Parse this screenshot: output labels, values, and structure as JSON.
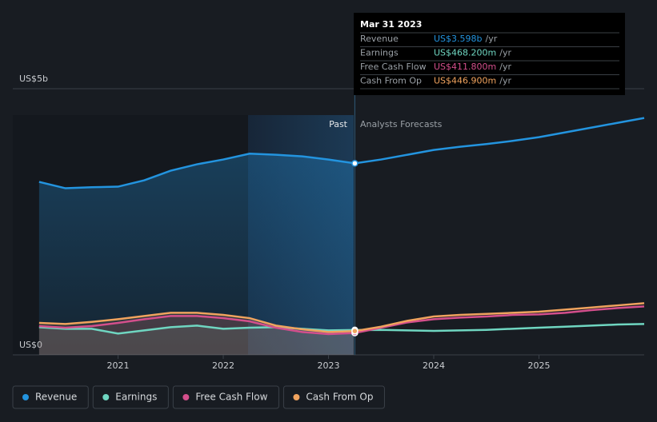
{
  "chart_data": {
    "type": "line",
    "x": [
      2020.25,
      2020.5,
      2020.75,
      2021.0,
      2021.25,
      2021.5,
      2021.75,
      2022.0,
      2022.25,
      2022.5,
      2022.75,
      2023.0,
      2023.25,
      2023.5,
      2023.75,
      2024.0,
      2024.25,
      2024.5,
      2024.75,
      2025.0,
      2025.25,
      2025.5,
      2025.75,
      2026.0
    ],
    "series": [
      {
        "name": "Revenue",
        "color": "#2394df",
        "values": [
          3.25,
          3.13,
          3.15,
          3.16,
          3.28,
          3.46,
          3.58,
          3.67,
          3.78,
          3.76,
          3.73,
          3.67,
          3.598,
          3.67,
          3.76,
          3.85,
          3.91,
          3.96,
          4.02,
          4.09,
          4.18,
          4.27,
          4.36,
          4.45
        ]
      },
      {
        "name": "Earnings",
        "color": "#6fd6c1",
        "values": [
          0.52,
          0.49,
          0.49,
          0.4,
          0.46,
          0.52,
          0.55,
          0.49,
          0.51,
          0.52,
          0.49,
          0.46,
          0.4682,
          0.47,
          0.46,
          0.45,
          0.46,
          0.47,
          0.49,
          0.51,
          0.53,
          0.55,
          0.57,
          0.58
        ]
      },
      {
        "name": "Free Cash Flow",
        "color": "#d44f8c",
        "values": [
          0.54,
          0.51,
          0.54,
          0.6,
          0.67,
          0.73,
          0.73,
          0.69,
          0.63,
          0.51,
          0.43,
          0.39,
          0.4118,
          0.51,
          0.61,
          0.67,
          0.7,
          0.72,
          0.75,
          0.76,
          0.79,
          0.84,
          0.88,
          0.91
        ]
      },
      {
        "name": "Cash From Op",
        "color": "#f0a35e",
        "values": [
          0.6,
          0.58,
          0.62,
          0.67,
          0.73,
          0.79,
          0.79,
          0.75,
          0.69,
          0.55,
          0.48,
          0.43,
          0.4469,
          0.53,
          0.64,
          0.72,
          0.75,
          0.77,
          0.79,
          0.81,
          0.85,
          0.89,
          0.93,
          0.97
        ]
      }
    ],
    "xlim": [
      2020,
      2026
    ],
    "xticks": [
      2021,
      2022,
      2023,
      2024,
      2025
    ],
    "ylim": [
      0,
      5
    ],
    "yticks": [
      {
        "value": 0,
        "label": "US$0"
      },
      {
        "value": 5,
        "label": "US$5b"
      }
    ],
    "grid": true,
    "divider_x": 2023.25,
    "past_label": "Past",
    "forecast_label": "Analysts Forecasts",
    "tooltip": {
      "date": "Mar 31 2023",
      "rows": [
        {
          "label": "Revenue",
          "value": "US$3.598b",
          "unit": "/yr"
        },
        {
          "label": "Earnings",
          "value": "US$468.200m",
          "unit": "/yr"
        },
        {
          "label": "Free Cash Flow",
          "value": "US$411.800m",
          "unit": "/yr"
        },
        {
          "label": "Cash From Op",
          "value": "US$446.900m",
          "unit": "/yr"
        }
      ]
    }
  }
}
